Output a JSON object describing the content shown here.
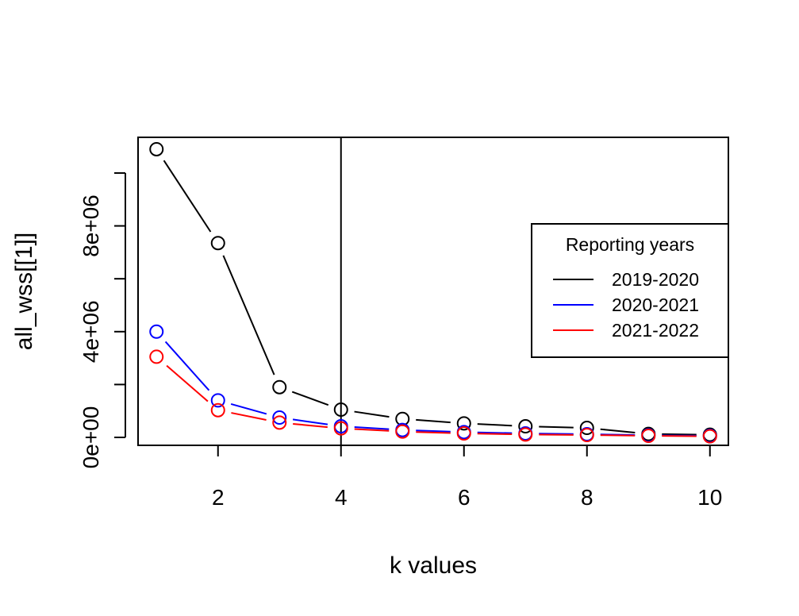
{
  "chart_data": {
    "type": "line",
    "xlabel": "k values",
    "ylabel": "all_wss[[1]]",
    "xlim": [
      0.7,
      10.3
    ],
    "ylim": [
      -300000,
      11350000
    ],
    "x_ticks": [
      2,
      4,
      6,
      8,
      10
    ],
    "y_ticks": [
      0,
      2000000,
      4000000,
      6000000,
      8000000,
      10000000
    ],
    "y_tick_labels": [
      {
        "value": 0,
        "label": "0e+00"
      },
      {
        "value": 4000000,
        "label": "4e+06"
      },
      {
        "value": 8000000,
        "label": "8e+06"
      }
    ],
    "vline_x": 4,
    "grid": false,
    "legend_placement": "right",
    "legend_title": "Reporting years",
    "x": [
      1,
      2,
      3,
      4,
      5,
      6,
      7,
      8,
      9,
      10
    ],
    "series": [
      {
        "name": "2019-2020",
        "color": "#000000",
        "values": [
          10900000,
          7350000,
          1900000,
          1050000,
          700000,
          530000,
          420000,
          360000,
          130000,
          100000
        ]
      },
      {
        "name": "2020-2021",
        "color": "#0000ff",
        "values": [
          4000000,
          1400000,
          750000,
          420000,
          280000,
          200000,
          150000,
          120000,
          80000,
          60000
        ]
      },
      {
        "name": "2021-2022",
        "color": "#ff0000",
        "values": [
          3050000,
          1030000,
          560000,
          340000,
          220000,
          150000,
          110000,
          90000,
          60000,
          40000
        ]
      }
    ]
  }
}
